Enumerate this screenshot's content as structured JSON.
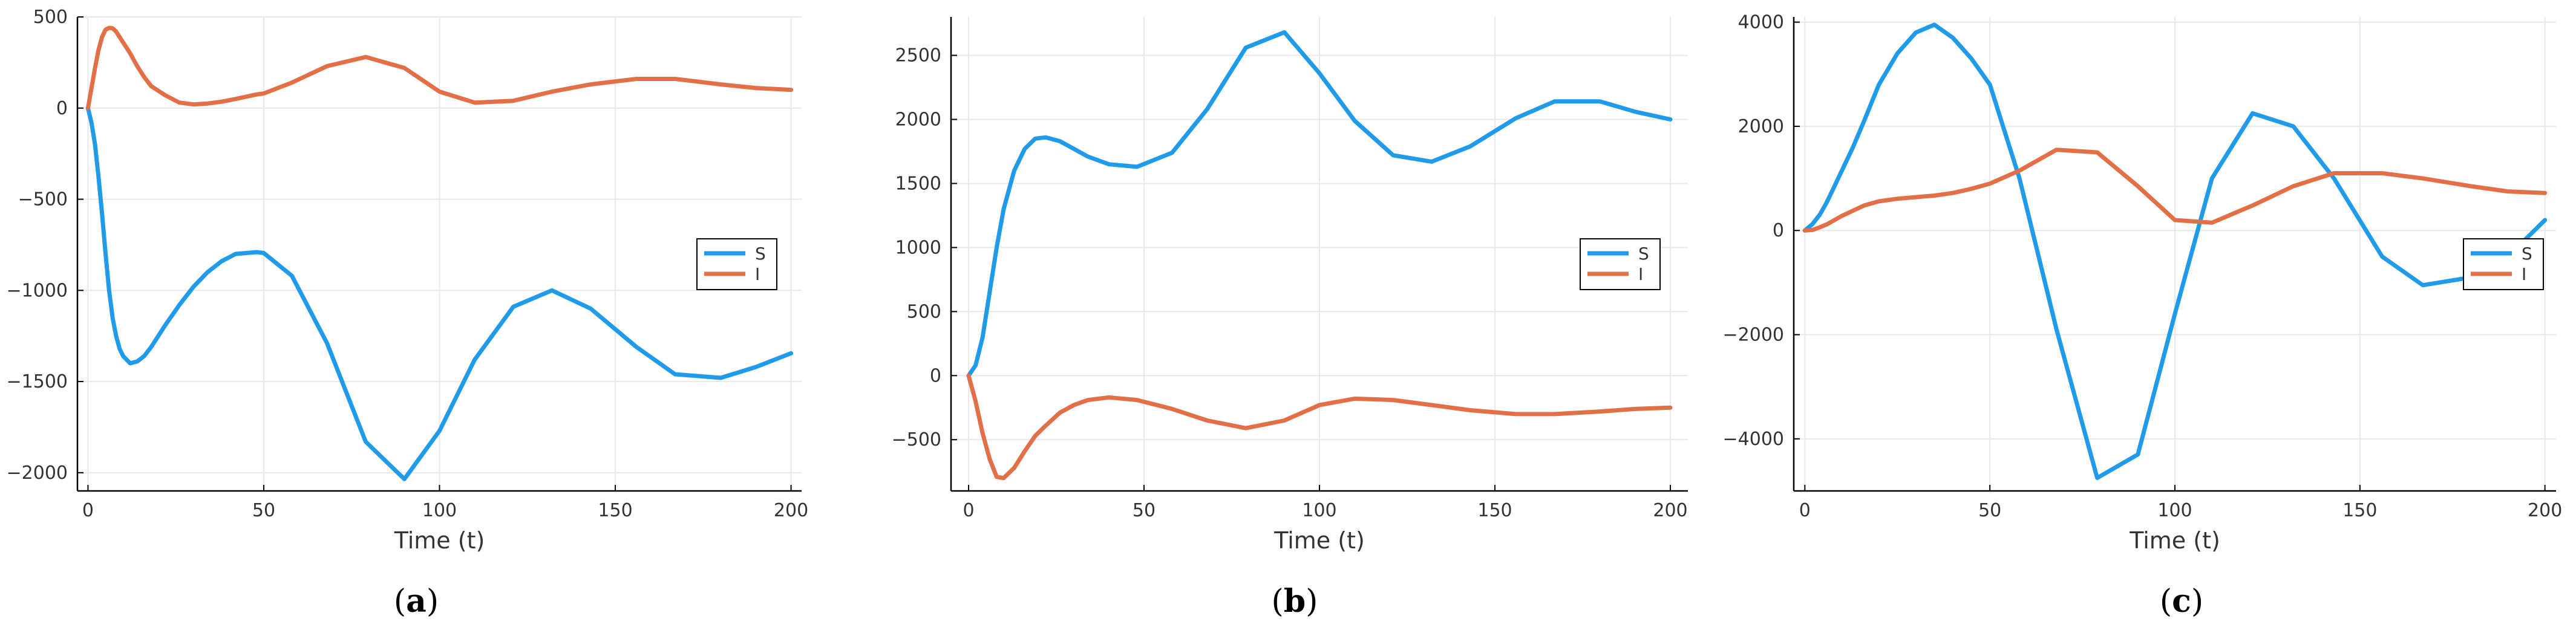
{
  "colors": {
    "S": "#1f9bea",
    "I": "#e36f47",
    "grid": "#e8e8e8",
    "axis": "#000000"
  },
  "chart_data": [
    {
      "type": "line",
      "panel_label": "a",
      "xlabel": "Time (t)",
      "ylabel": "",
      "xlim": [
        -3,
        203
      ],
      "ylim": [
        -2100,
        500
      ],
      "xticks": [
        0,
        50,
        100,
        150,
        200
      ],
      "yticks": [
        -2000,
        -1500,
        -1000,
        -500,
        0,
        500
      ],
      "grid": true,
      "legend": "right",
      "series": [
        {
          "name": "S",
          "x": [
            0,
            1,
            2,
            3,
            4,
            5,
            6,
            7,
            8,
            9,
            10,
            12,
            14,
            16,
            18,
            22,
            26,
            30,
            34,
            38,
            42,
            48,
            50,
            58,
            68,
            79,
            90,
            100,
            110,
            121,
            132,
            143,
            156,
            167,
            180,
            190,
            200
          ],
          "y": [
            0,
            -80,
            -200,
            -380,
            -580,
            -800,
            -1000,
            -1150,
            -1250,
            -1320,
            -1360,
            -1400,
            -1390,
            -1360,
            -1310,
            -1190,
            -1080,
            -980,
            -900,
            -840,
            -800,
            -790,
            -795,
            -920,
            -1290,
            -1830,
            -2035,
            -1770,
            -1380,
            -1090,
            -1000,
            -1100,
            -1310,
            -1460,
            -1480,
            -1420,
            -1345
          ]
        },
        {
          "name": "I",
          "x": [
            0,
            1,
            2,
            3,
            4,
            5,
            6,
            7,
            8,
            9,
            10,
            12,
            14,
            16,
            18,
            22,
            26,
            30,
            34,
            38,
            42,
            48,
            50,
            58,
            68,
            79,
            90,
            100,
            110,
            121,
            132,
            143,
            156,
            167,
            180,
            190,
            200
          ],
          "y": [
            0,
            110,
            220,
            320,
            390,
            430,
            440,
            438,
            420,
            390,
            360,
            300,
            230,
            170,
            120,
            70,
            30,
            20,
            25,
            35,
            50,
            75,
            80,
            140,
            230,
            280,
            220,
            90,
            30,
            40,
            90,
            130,
            160,
            160,
            130,
            110,
            100
          ]
        }
      ]
    },
    {
      "type": "line",
      "panel_label": "b",
      "xlabel": "Time (t)",
      "ylabel": "",
      "xlim": [
        -5,
        205
      ],
      "ylim": [
        -900,
        2800
      ],
      "xticks": [
        0,
        50,
        100,
        150,
        200
      ],
      "yticks": [
        -500,
        0,
        500,
        1000,
        1500,
        2000,
        2500
      ],
      "grid": true,
      "legend": "right",
      "series": [
        {
          "name": "S",
          "x": [
            0,
            2,
            4,
            6,
            8,
            10,
            13,
            16,
            19,
            22,
            26,
            30,
            34,
            40,
            48,
            58,
            68,
            79,
            90,
            100,
            110,
            121,
            132,
            143,
            156,
            167,
            180,
            190,
            200
          ],
          "y": [
            0,
            80,
            300,
            650,
            1000,
            1300,
            1600,
            1770,
            1850,
            1860,
            1830,
            1770,
            1710,
            1650,
            1630,
            1740,
            2080,
            2560,
            2680,
            2360,
            1990,
            1720,
            1670,
            1790,
            2010,
            2140,
            2140,
            2060,
            2000
          ]
        },
        {
          "name": "I",
          "x": [
            0,
            2,
            4,
            6,
            8,
            10,
            13,
            16,
            19,
            22,
            26,
            30,
            34,
            40,
            48,
            58,
            68,
            79,
            90,
            100,
            110,
            121,
            132,
            143,
            156,
            167,
            180,
            190,
            200
          ],
          "y": [
            0,
            -200,
            -450,
            -650,
            -790,
            -800,
            -720,
            -590,
            -470,
            -390,
            -290,
            -230,
            -190,
            -170,
            -190,
            -260,
            -350,
            -410,
            -350,
            -230,
            -180,
            -190,
            -230,
            -270,
            -300,
            -300,
            -280,
            -260,
            -250
          ]
        }
      ]
    },
    {
      "type": "line",
      "panel_label": "c",
      "xlabel": "Time (t)",
      "ylabel": "",
      "xlim": [
        -3,
        203
      ],
      "ylim": [
        -5000,
        4100
      ],
      "xticks": [
        0,
        50,
        100,
        150,
        200
      ],
      "yticks": [
        -4000,
        -2000,
        0,
        2000,
        4000
      ],
      "grid": true,
      "legend": "right",
      "series": [
        {
          "name": "S",
          "x": [
            0,
            2,
            4,
            6,
            8,
            10,
            13,
            16,
            20,
            25,
            30,
            35,
            40,
            45,
            50,
            58,
            68,
            79,
            90,
            100,
            110,
            121,
            132,
            143,
            156,
            167,
            180,
            190,
            200
          ],
          "y": [
            0,
            120,
            300,
            550,
            850,
            1150,
            1600,
            2100,
            2800,
            3400,
            3800,
            3950,
            3700,
            3300,
            2800,
            1000,
            -1900,
            -4750,
            -4300,
            -1600,
            1000,
            2250,
            2000,
            1000,
            -500,
            -1050,
            -900,
            -500,
            200
          ]
        },
        {
          "name": "I",
          "x": [
            0,
            2,
            4,
            6,
            8,
            10,
            13,
            16,
            20,
            25,
            30,
            35,
            40,
            45,
            50,
            58,
            68,
            79,
            90,
            100,
            110,
            121,
            132,
            143,
            156,
            167,
            180,
            190,
            200
          ],
          "y": [
            0,
            10,
            60,
            120,
            200,
            280,
            380,
            480,
            560,
            610,
            640,
            670,
            720,
            800,
            900,
            1150,
            1550,
            1500,
            850,
            200,
            150,
            480,
            850,
            1100,
            1100,
            1000,
            850,
            750,
            720
          ]
        }
      ]
    }
  ]
}
